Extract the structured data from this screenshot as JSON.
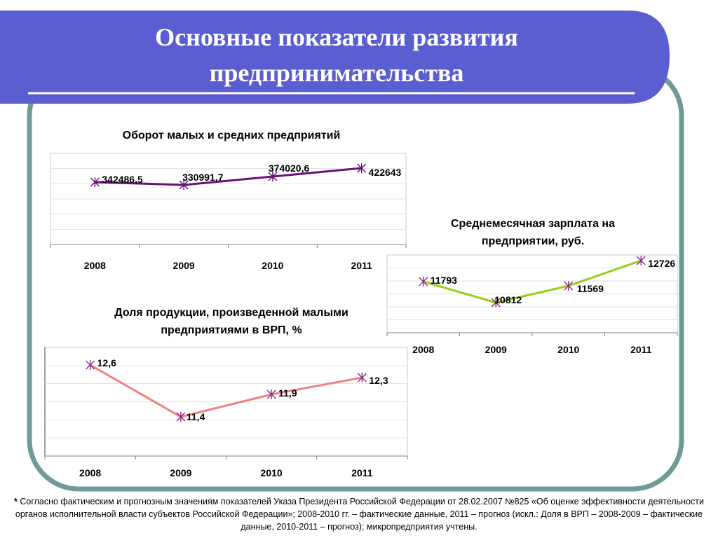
{
  "slide": {
    "title_line1": "Основные показатели развития",
    "title_line2": "предпринимательства"
  },
  "colors": {
    "banner": "#5b5ed0",
    "frame": "#6e9a98"
  },
  "chart_data": [
    {
      "type": "line",
      "title": "Оборот малых и средних предприятий",
      "categories": [
        "2008",
        "2009",
        "2010",
        "2011"
      ],
      "series": [
        {
          "values": [
            342486.5,
            330991.7,
            374020.6,
            422643
          ],
          "labels": [
            "342486,5",
            "330991,7",
            "374020,6",
            "422643"
          ],
          "color": "#6a0f7a"
        }
      ],
      "grid": true
    },
    {
      "type": "line",
      "title": "Среднемесячная зарплата на предприятии, руб.",
      "categories": [
        "2008",
        "2009",
        "2010",
        "2011"
      ],
      "series": [
        {
          "values": [
            11793,
            10812,
            11569,
            12726
          ],
          "labels": [
            "11793",
            "10812",
            "11569",
            "12726"
          ],
          "color": "#9acd1a"
        }
      ],
      "grid": true
    },
    {
      "type": "line",
      "title": "Доля продукции, произведенной малыми предприятиями в ВРП, %",
      "categories": [
        "2008",
        "2009",
        "2010",
        "2011"
      ],
      "series": [
        {
          "values": [
            12.6,
            11.4,
            11.9,
            12.3
          ],
          "labels": [
            "12,6",
            "11,4",
            "11,9",
            "12,3"
          ],
          "color": "#f08080"
        }
      ],
      "grid": true
    }
  ],
  "footnote": {
    "star": "*",
    "text": "Согласно фактическим и прогнозным значениям показателей Указа Президента Российской Федерации от 28.02.2007 №825 «Об оценке эффективности деятельности органов исполнительной власти субъектов Российской Федерации»; 2008-2010 гг. – фактические данные, 2011 – прогноз (искл.: Доля в ВРП – 2008-2009 – фактические данные, 2010-2011 – прогноз); микропредприятия учтены."
  }
}
